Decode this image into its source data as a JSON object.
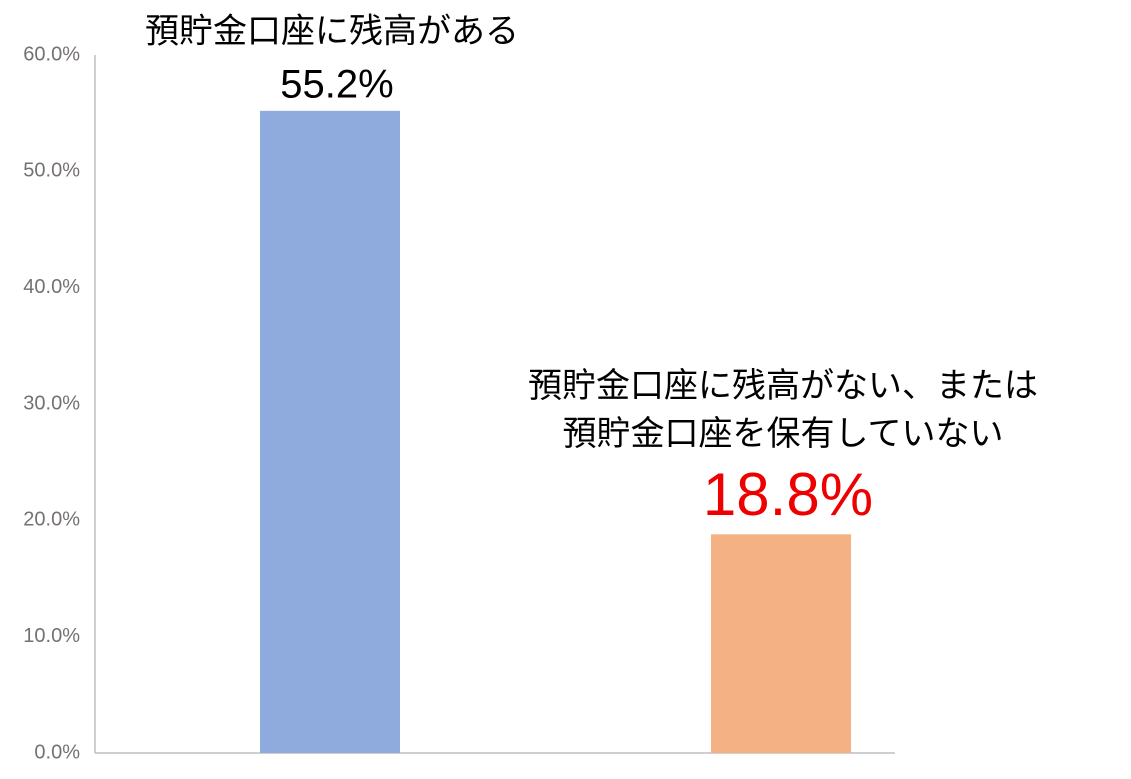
{
  "chart_data": {
    "type": "bar",
    "categories": [
      [
        "預貯金口座に残高がある"
      ],
      [
        "預貯金口座に残高がない、または",
        "預貯金口座を保有していない"
      ]
    ],
    "values": [
      55.2,
      18.8
    ],
    "value_labels": [
      "55.2%",
      "18.8%"
    ],
    "colors": [
      "#8faadc",
      "#f4b183"
    ],
    "value_label_colors": [
      "#000000",
      "#ee0000"
    ],
    "ylim": [
      0,
      60
    ],
    "yticks": [
      {
        "value": 0,
        "label": "0.0%"
      },
      {
        "value": 10,
        "label": "10.0%"
      },
      {
        "value": 20,
        "label": "20.0%"
      },
      {
        "value": 30,
        "label": "30.0%"
      },
      {
        "value": 40,
        "label": "40.0%"
      },
      {
        "value": 50,
        "label": "50.0%"
      },
      {
        "value": 60,
        "label": "60.0%"
      }
    ],
    "grid": false
  }
}
